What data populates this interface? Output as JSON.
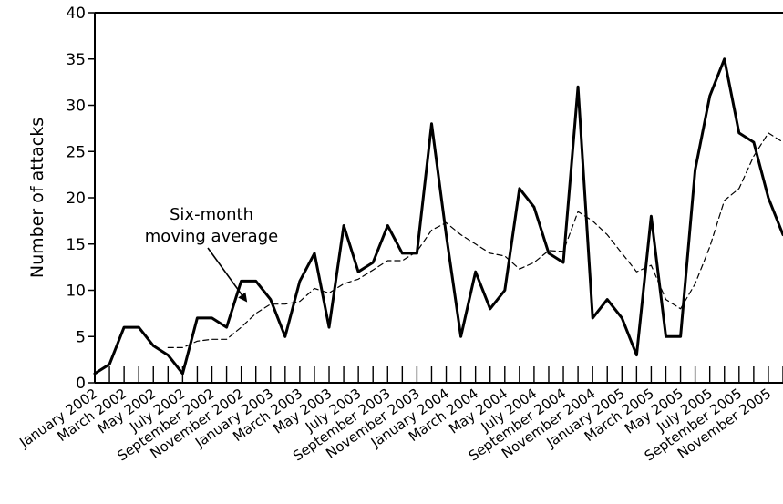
{
  "chart_data": {
    "type": "line",
    "title": "",
    "xlabel": "",
    "ylabel": "Number of attacks",
    "ylim": [
      0,
      40
    ],
    "yticks": [
      0,
      5,
      10,
      15,
      20,
      25,
      30,
      35,
      40
    ],
    "grid": false,
    "legend": "none",
    "x": [
      "January 2002",
      "February 2002",
      "March 2002",
      "April 2002",
      "May 2002",
      "June 2002",
      "July 2002",
      "August 2002",
      "September 2002",
      "October 2002",
      "November 2002",
      "December 2002",
      "January 2003",
      "February 2003",
      "March 2003",
      "April 2003",
      "May 2003",
      "June 2003",
      "July 2003",
      "August 2003",
      "September 2003",
      "October 2003",
      "November 2003",
      "December 2003",
      "January 2004",
      "February 2004",
      "March 2004",
      "April 2004",
      "May 2004",
      "June 2004",
      "July 2004",
      "August 2004",
      "September 2004",
      "October 2004",
      "November 2004",
      "December 2004",
      "January 2005",
      "February 2005",
      "March 2005",
      "April 2005",
      "May 2005",
      "June 2005",
      "July 2005",
      "August 2005",
      "September 2005",
      "October 2005",
      "November 2005",
      "December 2005"
    ],
    "x_tick_labels": [
      "January 2002",
      "March 2002",
      "May 2002",
      "July 2002",
      "September 2002",
      "November 2002",
      "January 2003",
      "March 2003",
      "May 2003",
      "July 2003",
      "September 2003",
      "November 2003",
      "January 2004",
      "March 2004",
      "May 2004",
      "July 2004",
      "September 2004",
      "November 2004",
      "January 2005",
      "March 2005",
      "May 2005",
      "July 2005",
      "September 2005",
      "November 2005"
    ],
    "series": [
      {
        "style": "solid",
        "color": "#000000",
        "values": [
          1,
          2,
          6,
          6,
          4,
          3,
          1,
          7,
          7,
          6,
          11,
          11,
          9,
          5,
          11,
          14,
          6,
          17,
          12,
          13,
          17,
          14,
          14,
          28,
          16,
          5,
          12,
          8,
          10,
          21,
          19,
          14,
          13,
          32,
          7,
          9,
          7,
          3,
          18,
          5,
          5,
          23,
          31,
          35,
          27,
          26,
          20,
          16
        ]
      },
      {
        "name": "Six-month moving average",
        "style": "dashed",
        "color": "#000000",
        "values": [
          null,
          null,
          null,
          null,
          null,
          3.8,
          3.8,
          4.5,
          4.7,
          4.7,
          6.0,
          7.5,
          8.5,
          8.5,
          8.8,
          10.2,
          9.7,
          10.7,
          11.2,
          12.2,
          13.2,
          13.2,
          14.2,
          16.5,
          17.3,
          16.0,
          15.0,
          14.0,
          13.7,
          12.3,
          13.0,
          14.3,
          14.2,
          18.5,
          17.5,
          16.0,
          14.0,
          12.0,
          12.7,
          9.0,
          8.0,
          10.7,
          14.7,
          19.7,
          21.0,
          24.5,
          27.0,
          26.0
        ]
      }
    ],
    "annotations": [
      {
        "text_lines": [
          "Six-month",
          "moving average"
        ],
        "points_to": "dashed series"
      }
    ]
  }
}
